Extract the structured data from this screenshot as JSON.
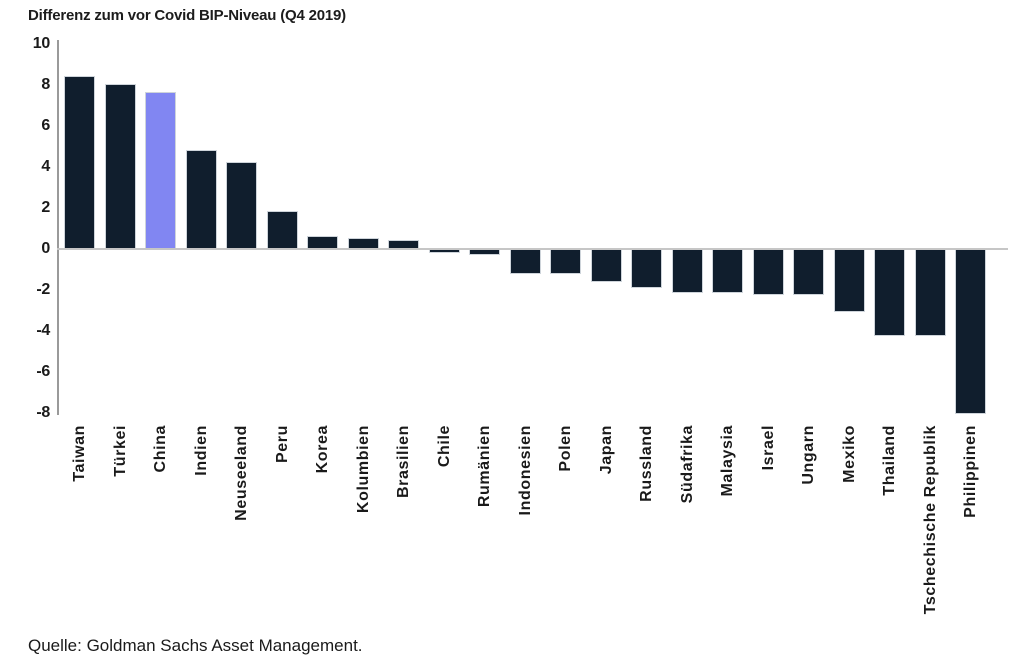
{
  "footer": {
    "source": "Quelle: Goldman Sachs Asset Management."
  },
  "chart_data": {
    "type": "bar",
    "title": "Differenz zum vor Covid BIP-Niveau (Q4 2019)",
    "categories": [
      "Taiwan",
      "Türkei",
      "China",
      "Indien",
      "Neuseeland",
      "Peru",
      "Korea",
      "Kolumbien",
      "Brasilien",
      "Chile",
      "Rumänien",
      "Indonesien",
      "Polen",
      "Japan",
      "Russland",
      "Südafrika",
      "Malaysia",
      "Israel",
      "Ungarn",
      "Mexiko",
      "Thailand",
      "Tschechische Republik",
      "Philippinen"
    ],
    "values": [
      8.4,
      8.0,
      7.6,
      4.8,
      4.2,
      1.8,
      0.6,
      0.5,
      0.4,
      -0.15,
      -0.25,
      -1.15,
      -1.15,
      -1.55,
      -1.85,
      -2.1,
      -2.1,
      -2.2,
      -2.2,
      -3.0,
      -4.2,
      -4.2,
      -8.0
    ],
    "highlight_category": "China",
    "xlabel": "",
    "ylabel": "",
    "ylim": [
      -8,
      10
    ],
    "yticks": [
      10,
      8,
      6,
      4,
      2,
      0,
      -2,
      -4,
      -6,
      -8
    ],
    "grid": "zero-line-only",
    "legend": "none",
    "colors": {
      "bar": "#101e2d",
      "highlight": "#8186f2",
      "axis_line": "#9a9a9a",
      "zero_line": "#c6c6c6",
      "text": "#1a1a1a"
    }
  }
}
